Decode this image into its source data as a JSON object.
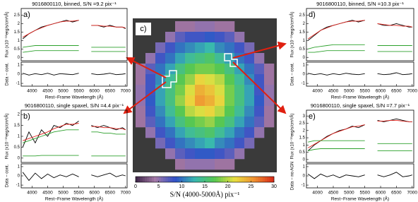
{
  "chart_data": [
    {
      "type": "line",
      "panel_label": "a)",
      "title": "9016800110, binned, S/N =9.2 pix⁻¹",
      "xlabel": "Rest−Frame Wavelength (Å)",
      "ylabel": "Flux (x10⁻¹⁶erg/s/cm²/Å)",
      "residual_ylabel": "Data − cont.",
      "x": [
        3700,
        3900,
        4100,
        4300,
        4500,
        4700,
        4900,
        5100,
        5300,
        5500,
        5700,
        5900,
        6100,
        6300,
        6500,
        6700,
        6900,
        7000
      ],
      "xlim": [
        3650,
        7050
      ],
      "xticks": [
        4000,
        4500,
        5000,
        5500,
        6000,
        6500,
        7000
      ],
      "ylim": [
        -0.2,
        2.9
      ],
      "yticks": [
        0,
        0.5,
        1,
        1.5,
        2,
        2.5
      ],
      "series": [
        {
          "color": "#000000",
          "values": [
            1.1,
            1.4,
            1.6,
            1.8,
            1.9,
            2.0,
            2.1,
            2.2,
            2.1,
            2.2,
            null,
            1.9,
            1.9,
            1.8,
            1.9,
            1.8,
            1.8,
            1.7
          ]
        },
        {
          "color": "#e0201a",
          "values": [
            1.2,
            1.4,
            1.6,
            1.75,
            1.9,
            2.0,
            2.1,
            2.15,
            2.15,
            2.2,
            null,
            1.9,
            1.9,
            1.85,
            1.85,
            1.8,
            1.8,
            1.75
          ]
        },
        {
          "color": "#2ca02c",
          "values": [
            0.6,
            0.65,
            0.7,
            0.7,
            0.7,
            0.7,
            0.7,
            0.7,
            0.7,
            0.7,
            null,
            0.6,
            0.6,
            0.6,
            0.6,
            0.6,
            0.6,
            0.6
          ]
        },
        {
          "color": "#2ca02c",
          "values": [
            0.3,
            0.35,
            0.4,
            0.4,
            0.4,
            0.4,
            0.4,
            0.4,
            0.4,
            0.4,
            null,
            0.35,
            0.35,
            0.35,
            0.35,
            0.35,
            0.35,
            0.35
          ]
        }
      ],
      "residual": {
        "color": "#000000",
        "values": [
          0.1,
          -0.1,
          0.05,
          -0.05,
          0.1,
          -0.1,
          0.05,
          0,
          -0.05,
          0.1,
          null,
          0.05,
          -0.05,
          0,
          0.1,
          -0.05,
          0,
          0.05
        ]
      },
      "residual_ylim": [
        -1.3,
        1.3
      ],
      "residual_yticks": [
        -1,
        0,
        1
      ]
    },
    {
      "type": "line",
      "panel_label": "b)",
      "title": "9016800110, single spaxel, S/N =4.4 pix⁻¹",
      "xlabel": "Rest−Frame Wavelength (Å)",
      "ylabel": "Flux (x10⁻¹⁶erg/s/cm²/Å)",
      "residual_ylabel": "Data − cont.",
      "x": [
        3700,
        3900,
        4100,
        4300,
        4500,
        4700,
        4900,
        5100,
        5300,
        5500,
        5700,
        5900,
        6100,
        6300,
        6500,
        6700,
        6900,
        7000
      ],
      "xlim": [
        3650,
        7050
      ],
      "xticks": [
        4000,
        4500,
        5000,
        5500,
        6000,
        6500,
        7000
      ],
      "ylim": [
        -0.2,
        2.2
      ],
      "yticks": [
        0,
        0.5,
        1,
        1.5,
        2
      ],
      "series": [
        {
          "color": "#000000",
          "values": [
            0.5,
            1.2,
            0.7,
            1.3,
            1.0,
            1.5,
            1.4,
            1.6,
            1.5,
            1.7,
            null,
            1.5,
            1.4,
            1.5,
            1.4,
            1.3,
            1.4,
            1.3
          ]
        },
        {
          "color": "#e0201a",
          "values": [
            0.8,
            0.9,
            1.0,
            1.1,
            1.2,
            1.35,
            1.45,
            1.55,
            1.55,
            1.6,
            null,
            1.45,
            1.45,
            1.4,
            1.4,
            1.35,
            1.35,
            1.3
          ]
        },
        {
          "color": "#2ca02c",
          "values": [
            0.7,
            0.8,
            0.9,
            1.0,
            1.1,
            1.2,
            1.25,
            1.3,
            1.3,
            1.3,
            null,
            1.2,
            1.2,
            1.15,
            1.15,
            1.1,
            1.1,
            1.1
          ]
        },
        {
          "color": "#2ca02c",
          "values": [
            0.1,
            0.1,
            0.1,
            0.12,
            0.12,
            0.12,
            0.12,
            0.12,
            0.12,
            0.12,
            null,
            0.1,
            0.1,
            0.1,
            0.1,
            0.1,
            0.1,
            0.1
          ]
        }
      ],
      "residual": {
        "color": "#000000",
        "values": [
          0.4,
          -0.5,
          0.3,
          -0.3,
          0.2,
          -0.2,
          0.1,
          -0.1,
          0.2,
          -0.1,
          null,
          0.1,
          -0.1,
          0.1,
          0.3,
          -0.1,
          0.1,
          0
        ]
      },
      "residual_ylim": [
        -1.3,
        1.3
      ],
      "residual_yticks": [
        -1,
        0,
        1
      ]
    },
    {
      "type": "line",
      "panel_label": "d)",
      "title": "9016800110, binned, S/N =10.3 pix⁻¹",
      "xlabel": "Rest−Frame Wavelength (Å)",
      "ylabel": "Flux (x10⁻¹⁶erg/s/cm²/Å)",
      "residual_ylabel": "Data − cont.",
      "x": [
        3700,
        3900,
        4100,
        4300,
        4500,
        4700,
        4900,
        5100,
        5300,
        5500,
        5700,
        5900,
        6100,
        6300,
        6500,
        6700,
        6900,
        7000
      ],
      "xlim": [
        3650,
        7050
      ],
      "xticks": [
        4000,
        4500,
        5000,
        5500,
        6000,
        6500,
        7000
      ],
      "ylim": [
        -0.2,
        2.9
      ],
      "yticks": [
        0,
        0.5,
        1,
        1.5,
        2,
        2.5
      ],
      "series": [
        {
          "color": "#000000",
          "values": [
            1.0,
            1.3,
            1.6,
            1.8,
            1.9,
            2.0,
            2.1,
            2.2,
            2.1,
            2.2,
            null,
            2.0,
            1.9,
            1.9,
            2.0,
            1.9,
            1.8,
            1.8
          ]
        },
        {
          "color": "#e0201a",
          "values": [
            1.1,
            1.35,
            1.6,
            1.75,
            1.9,
            2.0,
            2.1,
            2.15,
            2.15,
            2.2,
            null,
            2.0,
            1.95,
            1.9,
            1.9,
            1.85,
            1.85,
            1.8
          ]
        },
        {
          "color": "#2ca02c",
          "values": [
            0.5,
            0.6,
            0.65,
            0.7,
            0.75,
            0.75,
            0.75,
            0.75,
            0.75,
            0.75,
            null,
            0.7,
            0.7,
            0.7,
            0.7,
            0.7,
            0.7,
            0.7
          ]
        },
        {
          "color": "#2ca02c",
          "values": [
            0.3,
            0.3,
            0.35,
            0.4,
            0.4,
            0.4,
            0.4,
            0.4,
            0.4,
            0.4,
            null,
            0.35,
            0.35,
            0.35,
            0.35,
            0.35,
            0.35,
            0.35
          ]
        }
      ],
      "residual": {
        "color": "#000000",
        "values": [
          0.1,
          -0.05,
          0.05,
          -0.1,
          0.05,
          -0.05,
          0.1,
          0,
          -0.05,
          0.05,
          null,
          0.05,
          -0.05,
          0,
          0.15,
          -0.05,
          0,
          0.05
        ]
      },
      "residual_ylim": [
        -1.3,
        1.3
      ],
      "residual_yticks": [
        -1,
        0,
        1
      ]
    },
    {
      "type": "line",
      "panel_label": "e)",
      "title": "9016800110, single spaxel, S/N =7.7 pix⁻¹",
      "xlabel": "Rest−Frame Wavelength (Å)",
      "ylabel": "Flux (x10⁻¹⁶erg/s/cm²/Å)",
      "residual_ylabel": "Data − no AGN",
      "x": [
        3700,
        3900,
        4100,
        4300,
        4500,
        4700,
        4900,
        5100,
        5300,
        5500,
        5700,
        5900,
        6100,
        6300,
        6500,
        6700,
        6900,
        7000
      ],
      "xlim": [
        3650,
        7050
      ],
      "xticks": [
        4000,
        4500,
        5000,
        5500,
        6000,
        6500,
        7000
      ],
      "ylim": [
        -0.2,
        3.4
      ],
      "yticks": [
        0,
        0.5,
        1,
        1.5,
        2,
        2.5,
        3
      ],
      "series": [
        {
          "color": "#000000",
          "values": [
            0.6,
            1.0,
            1.3,
            1.6,
            1.8,
            2.0,
            2.1,
            2.3,
            2.2,
            2.4,
            null,
            2.7,
            2.6,
            2.7,
            2.8,
            2.7,
            2.6,
            2.6
          ]
        },
        {
          "color": "#e0201a",
          "values": [
            0.8,
            1.05,
            1.3,
            1.55,
            1.8,
            1.95,
            2.1,
            2.25,
            2.3,
            2.4,
            null,
            2.65,
            2.65,
            2.7,
            2.7,
            2.65,
            2.6,
            2.6
          ]
        },
        {
          "color": "#2ca02c",
          "values": [
            1.2,
            1.3,
            1.3,
            1.3,
            1.3,
            1.3,
            1.3,
            1.3,
            1.3,
            1.3,
            null,
            1.1,
            1.1,
            1.1,
            1.1,
            1.1,
            1.1,
            1.1
          ]
        },
        {
          "color": "#2ca02c",
          "values": [
            0.6,
            0.7,
            0.75,
            0.75,
            0.75,
            0.75,
            0.75,
            0.75,
            0.75,
            0.75,
            null,
            0.6,
            0.6,
            0.6,
            0.6,
            0.6,
            0.6,
            0.6
          ]
        }
      ],
      "residual": {
        "color": "#000000",
        "values": [
          0.2,
          -0.3,
          0.2,
          -0.1,
          0.1,
          -0.2,
          0.1,
          0,
          -0.1,
          0.1,
          null,
          0.1,
          -0.1,
          0.1,
          0.4,
          -0.1,
          0,
          0.1
        ]
      },
      "residual_ylim": [
        -1.3,
        1.3
      ],
      "residual_yticks": [
        -1,
        0,
        1
      ]
    },
    {
      "type": "heatmap",
      "panel_label": "c)",
      "colorbar_label": "S/N (4000-5000Å) pix⁻¹",
      "clim": [
        0,
        30
      ],
      "colorbar_ticks": [
        0,
        5,
        10,
        15,
        20,
        25,
        30
      ],
      "colormap": [
        "#3b2346",
        "#a57aa8",
        "#3050c8",
        "#38b8b0",
        "#58c850",
        "#e8e040",
        "#f09030",
        "#d82818"
      ],
      "values": [
        [
          null,
          null,
          null,
          null,
          4,
          4,
          5,
          5,
          4,
          4,
          null,
          null,
          null,
          null
        ],
        [
          null,
          null,
          null,
          5,
          7,
          8,
          8,
          9,
          8,
          7,
          5,
          null,
          null,
          null
        ],
        [
          null,
          null,
          6,
          8,
          10,
          11,
          12,
          13,
          11,
          10,
          8,
          6,
          null,
          null
        ],
        [
          null,
          5,
          8,
          10,
          12,
          14,
          15,
          16,
          14,
          12,
          10,
          8,
          5,
          null
        ],
        [
          4,
          7,
          10,
          12,
          15,
          17,
          18,
          18,
          17,
          15,
          12,
          10,
          7,
          4
        ],
        [
          4,
          8,
          11,
          14,
          17,
          19,
          22,
          21,
          20,
          17,
          14,
          11,
          8,
          4
        ],
        [
          5,
          8,
          12,
          15,
          18,
          21,
          24,
          23,
          21,
          18,
          15,
          12,
          8,
          5
        ],
        [
          5,
          9,
          12,
          15,
          19,
          22,
          25,
          24,
          22,
          18,
          15,
          12,
          9,
          5
        ],
        [
          4,
          8,
          11,
          14,
          17,
          20,
          21,
          22,
          20,
          17,
          14,
          11,
          8,
          4
        ],
        [
          4,
          7,
          10,
          12,
          15,
          17,
          18,
          19,
          17,
          15,
          12,
          10,
          7,
          4
        ],
        [
          null,
          5,
          8,
          10,
          12,
          14,
          15,
          16,
          14,
          12,
          10,
          8,
          5,
          null
        ],
        [
          null,
          null,
          6,
          8,
          10,
          11,
          12,
          13,
          11,
          10,
          8,
          6,
          null,
          null
        ],
        [
          null,
          null,
          null,
          5,
          7,
          8,
          9,
          9,
          8,
          7,
          5,
          null,
          null,
          null
        ],
        [
          null,
          null,
          null,
          null,
          4,
          5,
          5,
          5,
          4,
          4,
          null,
          null,
          null,
          null
        ]
      ]
    }
  ]
}
